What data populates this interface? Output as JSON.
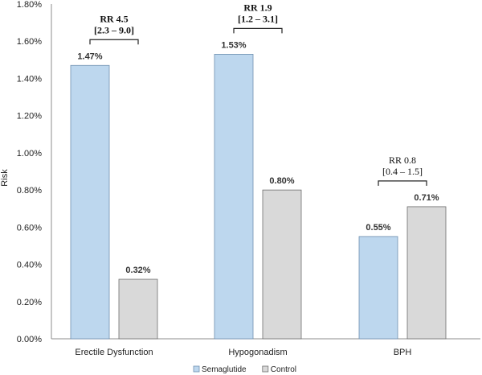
{
  "chart_data": {
    "type": "bar",
    "title": "",
    "xlabel": "",
    "ylabel": "Risk",
    "ylim": [
      0,
      1.8
    ],
    "y_tick_step": 0.2,
    "y_tick_format": "percent_2dp",
    "grid": false,
    "legend_position": "bottom",
    "categories": [
      "Erectile Dysfunction",
      "Hypogonadism",
      "BPH"
    ],
    "series": [
      {
        "name": "Semaglutide",
        "color": "#bdd7ee",
        "stroke": "#6f8fb0",
        "values": [
          1.47,
          1.53,
          0.55
        ],
        "labels": [
          "1.47%",
          "1.53%",
          "0.55%"
        ]
      },
      {
        "name": "Control",
        "color": "#d9d9d9",
        "stroke": "#6f6f6f",
        "values": [
          0.32,
          0.8,
          0.71
        ],
        "labels": [
          "0.32%",
          "0.80%",
          "0.71%"
        ]
      }
    ],
    "annotations": [
      {
        "category": "Erectile Dysfunction",
        "line1": "RR 4.5",
        "line2": "[2.3 – 9.0]",
        "bold": true
      },
      {
        "category": "Hypogonadism",
        "line1": "RR 1.9",
        "line2": "[1.2 – 3.1]",
        "bold": true
      },
      {
        "category": "BPH",
        "line1": "RR 0.8",
        "line2": "[0.4 – 1.5]",
        "bold": false
      }
    ]
  }
}
